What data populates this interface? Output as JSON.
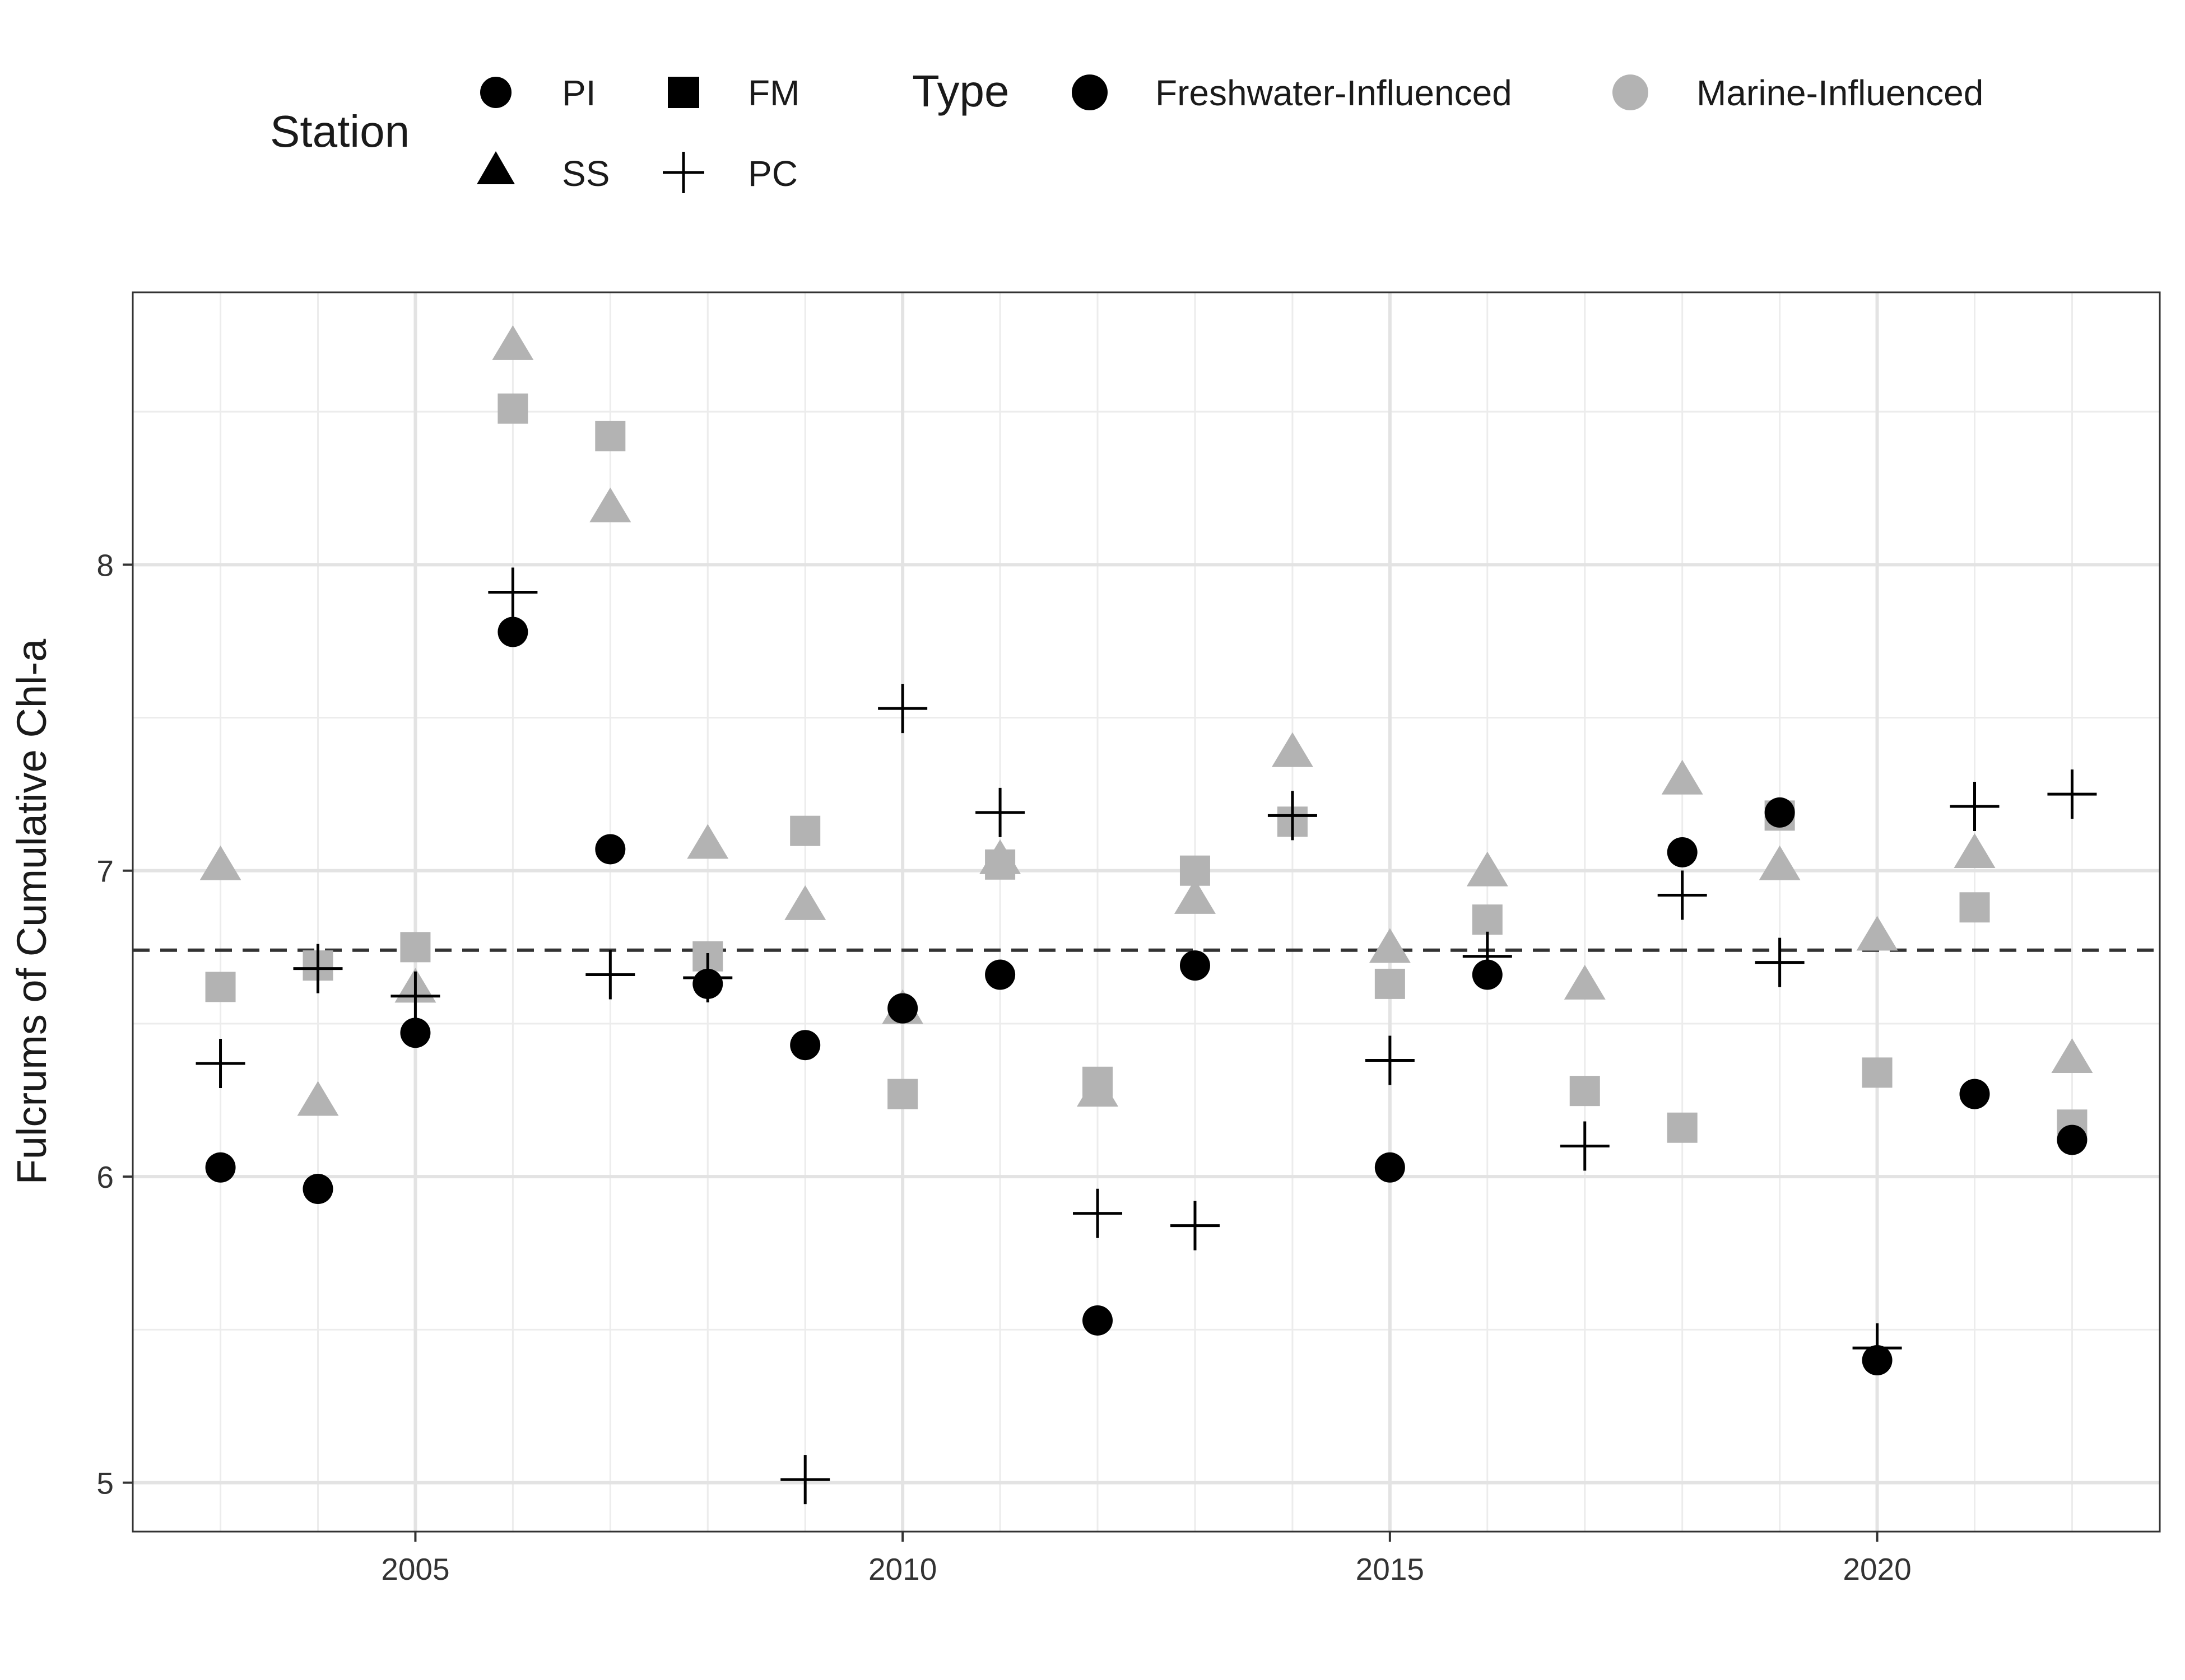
{
  "chart_data": {
    "type": "scatter",
    "title": "",
    "xlabel": "",
    "ylabel": "Fulcrums of Cumulative Chl-a",
    "xlim": [
      2002.1,
      2022.9
    ],
    "ylim": [
      4.84,
      8.89
    ],
    "x_ticks": [
      2005,
      2010,
      2015,
      2020
    ],
    "y_ticks": [
      5,
      6,
      7,
      8
    ],
    "grid": true,
    "reference_line": {
      "y": 6.74,
      "style": "dashed"
    },
    "legend": {
      "position": "top",
      "station_title": "Station",
      "type_title": "Type",
      "stations": [
        {
          "code": "PI",
          "shape": "circle"
        },
        {
          "code": "FM",
          "shape": "square"
        },
        {
          "code": "SS",
          "shape": "triangle"
        },
        {
          "code": "PC",
          "shape": "plus"
        }
      ],
      "types": [
        {
          "name": "Freshwater-Influenced",
          "color": "#000000"
        },
        {
          "name": "Marine-Influenced",
          "color": "#b3b3b3"
        }
      ]
    },
    "series": [
      {
        "station": "PI",
        "shape": "circle",
        "type": "Freshwater-Influenced",
        "x": [
          2003,
          2004,
          2005,
          2006,
          2007,
          2008,
          2009,
          2010,
          2011,
          2012,
          2013,
          2015,
          2016,
          2018,
          2019,
          2020,
          2021,
          2022
        ],
        "y": [
          6.03,
          5.96,
          6.47,
          7.78,
          7.07,
          6.63,
          6.43,
          6.55,
          6.66,
          5.53,
          6.69,
          6.03,
          6.66,
          7.06,
          7.19,
          5.4,
          6.27,
          6.12
        ]
      },
      {
        "station": "PC",
        "shape": "plus",
        "type": "Freshwater-Influenced",
        "x": [
          2003,
          2004,
          2005,
          2006,
          2007,
          2008,
          2009,
          2010,
          2011,
          2012,
          2013,
          2014,
          2015,
          2016,
          2017,
          2018,
          2019,
          2020,
          2021,
          2022
        ],
        "y": [
          6.37,
          6.68,
          6.59,
          7.91,
          6.66,
          6.65,
          5.01,
          7.53,
          7.19,
          5.88,
          5.84,
          7.18,
          6.38,
          6.72,
          6.1,
          6.92,
          6.7,
          5.44,
          7.21,
          7.25
        ]
      },
      {
        "station": "FM",
        "shape": "square",
        "type": "Marine-Influenced",
        "x": [
          2003,
          2004,
          2005,
          2006,
          2007,
          2008,
          2009,
          2010,
          2011,
          2012,
          2013,
          2014,
          2015,
          2016,
          2017,
          2018,
          2019,
          2020,
          2021,
          2022
        ],
        "y": [
          6.62,
          6.69,
          6.75,
          8.51,
          8.42,
          6.72,
          7.13,
          6.27,
          7.02,
          6.31,
          7.0,
          7.16,
          6.63,
          6.84,
          6.28,
          6.16,
          7.18,
          6.34,
          6.88,
          6.17
        ]
      },
      {
        "station": "SS",
        "shape": "triangle",
        "type": "Marine-Influenced",
        "x": [
          2003,
          2004,
          2005,
          2006,
          2007,
          2008,
          2009,
          2010,
          2011,
          2012,
          2013,
          2014,
          2015,
          2016,
          2017,
          2018,
          2019,
          2020,
          2021,
          2022
        ],
        "y": [
          7.02,
          6.25,
          6.62,
          8.72,
          8.19,
          7.09,
          6.89,
          6.55,
          7.04,
          6.28,
          6.91,
          7.39,
          6.75,
          7.0,
          6.63,
          7.3,
          7.02,
          6.79,
          7.06,
          6.39
        ]
      }
    ]
  }
}
